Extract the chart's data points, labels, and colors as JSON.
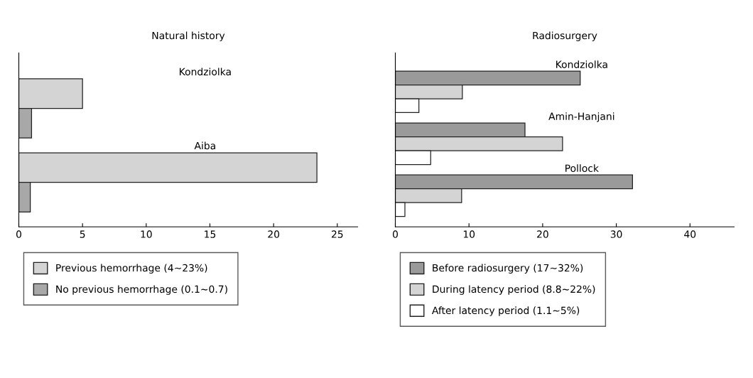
{
  "chart_data": [
    {
      "type": "bar",
      "orientation": "horizontal",
      "title": "Natural history",
      "categories": [
        "Kondziolka",
        "Aiba"
      ],
      "xlim": [
        0,
        26.6
      ],
      "xticks": [
        0,
        5,
        10,
        15,
        20,
        25
      ],
      "grid": false,
      "legend": "bottom",
      "series": [
        {
          "name": "Previous hemorrhage (4~23%)",
          "color": "#d4d4d4",
          "values": [
            5.0,
            23.4
          ]
        },
        {
          "name": "No previous hemorrhage (0.1~0.7)",
          "color": "#a8a8a8",
          "values": [
            1.0,
            0.9
          ]
        }
      ]
    },
    {
      "type": "bar",
      "orientation": "horizontal",
      "title": "Radiosurgery",
      "categories": [
        "Kondziolka",
        "Amin-Hanjani",
        "Pollock"
      ],
      "xlim": [
        0,
        46
      ],
      "xticks": [
        0,
        10,
        20,
        30,
        40
      ],
      "grid": false,
      "legend": "bottom",
      "series": [
        {
          "name": "Before radiosurgery (17~32%)",
          "color": "#9a9a9a",
          "values": [
            25.1,
            17.6,
            32.2
          ]
        },
        {
          "name": "During latency period (8.8~22%)",
          "color": "#d4d4d4",
          "values": [
            9.1,
            22.7,
            9.0
          ]
        },
        {
          "name": "After latency period (1.1~5%)",
          "color": "#ffffff",
          "values": [
            3.2,
            4.8,
            1.3
          ]
        }
      ]
    }
  ]
}
